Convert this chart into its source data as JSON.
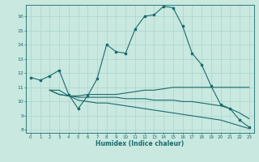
{
  "title": "",
  "xlabel": "Humidex (Indice chaleur)",
  "ylabel": "",
  "bg_color": "#c8e8e0",
  "line_color": "#1a6b6b",
  "grid_color": "#b0d8d0",
  "xlim": [
    -0.5,
    23.5
  ],
  "ylim": [
    7.8,
    16.8
  ],
  "yticks": [
    8,
    9,
    10,
    11,
    12,
    13,
    14,
    15,
    16
  ],
  "xticks": [
    0,
    1,
    2,
    3,
    4,
    5,
    6,
    7,
    8,
    9,
    10,
    11,
    12,
    13,
    14,
    15,
    16,
    17,
    18,
    19,
    20,
    21,
    22,
    23
  ],
  "line1_x": [
    0,
    1,
    2,
    3,
    4,
    5,
    6,
    7,
    8,
    9,
    10,
    11,
    12,
    13,
    14,
    15,
    16,
    17,
    18,
    19,
    20,
    21,
    22,
    23
  ],
  "line1_y": [
    11.7,
    11.5,
    11.8,
    12.2,
    10.5,
    9.5,
    10.4,
    11.6,
    14.0,
    13.5,
    13.4,
    15.1,
    16.0,
    16.1,
    16.7,
    16.6,
    15.3,
    13.4,
    12.6,
    11.1,
    9.8,
    9.5,
    8.7,
    8.2
  ],
  "line2_x": [
    2,
    3,
    4,
    5,
    6,
    7,
    8,
    9,
    10,
    11,
    12,
    13,
    14,
    15,
    16,
    17,
    18,
    19,
    20,
    21,
    22,
    23
  ],
  "line2_y": [
    10.8,
    10.8,
    10.4,
    10.4,
    10.5,
    10.5,
    10.5,
    10.5,
    10.6,
    10.7,
    10.8,
    10.8,
    10.9,
    11.0,
    11.0,
    11.0,
    11.0,
    11.0,
    11.0,
    11.0,
    11.0,
    11.0
  ],
  "line3_x": [
    2,
    3,
    4,
    5,
    6,
    7,
    8,
    9,
    10,
    11,
    12,
    13,
    14,
    15,
    16,
    17,
    18,
    19,
    20,
    21,
    22,
    23
  ],
  "line3_y": [
    10.8,
    10.5,
    10.4,
    10.3,
    10.3,
    10.3,
    10.3,
    10.3,
    10.2,
    10.2,
    10.2,
    10.1,
    10.1,
    10.1,
    10.0,
    10.0,
    9.9,
    9.8,
    9.7,
    9.5,
    9.2,
    8.8
  ],
  "line4_x": [
    2,
    3,
    4,
    5,
    6,
    7,
    8,
    9,
    10,
    11,
    12,
    13,
    14,
    15,
    16,
    17,
    18,
    19,
    20,
    21,
    22,
    23
  ],
  "line4_y": [
    10.8,
    10.5,
    10.4,
    10.1,
    10.0,
    9.9,
    9.9,
    9.8,
    9.7,
    9.6,
    9.5,
    9.4,
    9.3,
    9.2,
    9.1,
    9.0,
    8.9,
    8.8,
    8.7,
    8.5,
    8.3,
    8.1
  ]
}
